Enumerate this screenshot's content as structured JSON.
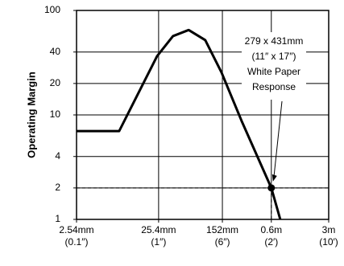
{
  "chart_data": {
    "type": "line",
    "y_label": "Operating Margin",
    "log_x": true,
    "log_y": true,
    "grid": true,
    "xlim": [
      2.54,
      3000
    ],
    "ylim": [
      1,
      100
    ],
    "yticks": [
      1,
      2,
      4,
      10,
      20,
      40,
      100
    ],
    "xticks": [
      {
        "value": 2.54,
        "label": "2.54mm"
      },
      {
        "value": 25.4,
        "label": "25.4mm"
      },
      {
        "value": 152,
        "label": "152mm"
      },
      {
        "value": 600,
        "label": "0.6m"
      },
      {
        "value": 3000,
        "label": "3m"
      }
    ],
    "xtick_sublabels": [
      "(0.1″)",
      "(1″)",
      "(6″)",
      "(2′)",
      "(10′)"
    ],
    "series": [
      {
        "color": "#000000",
        "x": [
          2.54,
          8.4,
          24.3,
          38,
          59,
          94,
          148,
          260,
          600,
          771
        ],
        "values": [
          7,
          7,
          36.5,
          56.8,
          65,
          52,
          25.6,
          8.8,
          2,
          1
        ]
      }
    ],
    "annotation": {
      "x": 600,
      "y": 2,
      "lines": [
        "279 x 431mm",
        "(11″ x 17″)",
        "White Paper",
        "Response"
      ]
    }
  }
}
